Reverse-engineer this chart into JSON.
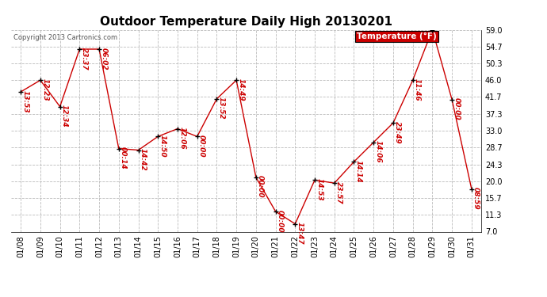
{
  "title": "Outdoor Temperature Daily High 20130201",
  "copyright_text": "Copyright 2013 Cartronics.com",
  "legend_label": "Temperature (°F)",
  "dates": [
    "01/08",
    "01/09",
    "01/10",
    "01/11",
    "01/12",
    "01/13",
    "01/14",
    "01/15",
    "01/16",
    "01/17",
    "01/18",
    "01/19",
    "01/20",
    "01/21",
    "01/22",
    "01/23",
    "01/24",
    "01/25",
    "01/26",
    "01/27",
    "01/28",
    "01/29",
    "01/30",
    "01/31"
  ],
  "values": [
    43.0,
    46.0,
    39.2,
    54.0,
    54.0,
    28.4,
    28.0,
    31.5,
    33.5,
    31.5,
    41.2,
    46.0,
    21.0,
    12.2,
    9.0,
    20.3,
    19.5,
    25.0,
    30.0,
    35.0,
    46.0,
    59.0,
    41.0,
    18.0
  ],
  "time_labels": [
    "13:53",
    "12:23",
    "12:34",
    "23:37",
    "06:02",
    "00:14",
    "14:42",
    "14:50",
    "12:06",
    "00:00",
    "13:52",
    "14:49",
    "00:00",
    "00:00",
    "13:47",
    "14:53",
    "23:57",
    "14:14",
    "14:06",
    "23:49",
    "11:46",
    "",
    "00:00",
    "08:59"
  ],
  "ylim": [
    7.0,
    59.0
  ],
  "yticks": [
    7.0,
    11.3,
    15.7,
    20.0,
    24.3,
    28.7,
    33.0,
    37.3,
    41.7,
    46.0,
    50.3,
    54.7,
    59.0
  ],
  "line_color": "#cc0000",
  "marker_color": "#000000",
  "bg_color": "#ffffff",
  "grid_color": "#bbbbbb",
  "title_fontsize": 11,
  "label_fontsize": 7,
  "annotation_fontsize": 6.5,
  "legend_bg": "#cc0000",
  "legend_text_color": "#ffffff"
}
